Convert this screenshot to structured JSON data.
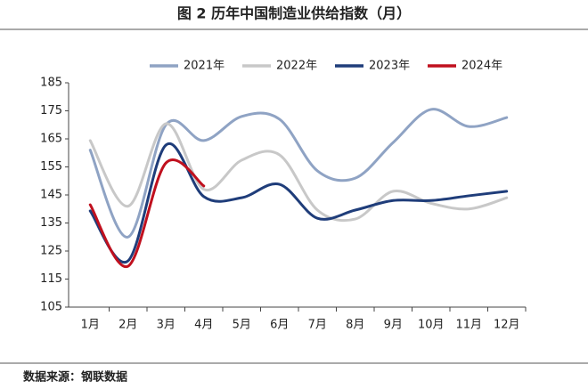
{
  "chart_data": {
    "type": "line",
    "title": "图 2 历年中国制造业供给指数（月）",
    "source": "数据来源：钢联数据",
    "categories": [
      "1月",
      "2月",
      "3月",
      "4月",
      "5月",
      "6月",
      "7月",
      "8月",
      "9月",
      "10月",
      "11月",
      "12月"
    ],
    "series": [
      {
        "name": "2021年",
        "color": "#8fa3c4",
        "values": [
          161,
          130,
          170,
          164.4,
          173,
          172,
          153.6,
          151,
          163.7,
          175.5,
          169.4,
          172.6
        ]
      },
      {
        "name": "2022年",
        "color": "#c8c8c8",
        "values": [
          164.4,
          141,
          170.4,
          147,
          157.4,
          159.3,
          139.6,
          136.4,
          146.3,
          142,
          140,
          144
        ]
      },
      {
        "name": "2023年",
        "color": "#1f3d7a",
        "values": [
          139.3,
          121.5,
          162.8,
          144.4,
          144,
          148.8,
          136.7,
          139.6,
          143,
          143,
          144.7,
          146.3
        ]
      },
      {
        "name": "2024年",
        "color": "#c0101e",
        "values": [
          141.5,
          119.6,
          156.4,
          148.2,
          null,
          null,
          null,
          null,
          null,
          null,
          null,
          null
        ]
      }
    ],
    "ylim": [
      105,
      185
    ],
    "yticks": [
      105,
      115,
      125,
      135,
      145,
      155,
      165,
      175,
      185
    ],
    "grid": false,
    "legend": "top"
  }
}
